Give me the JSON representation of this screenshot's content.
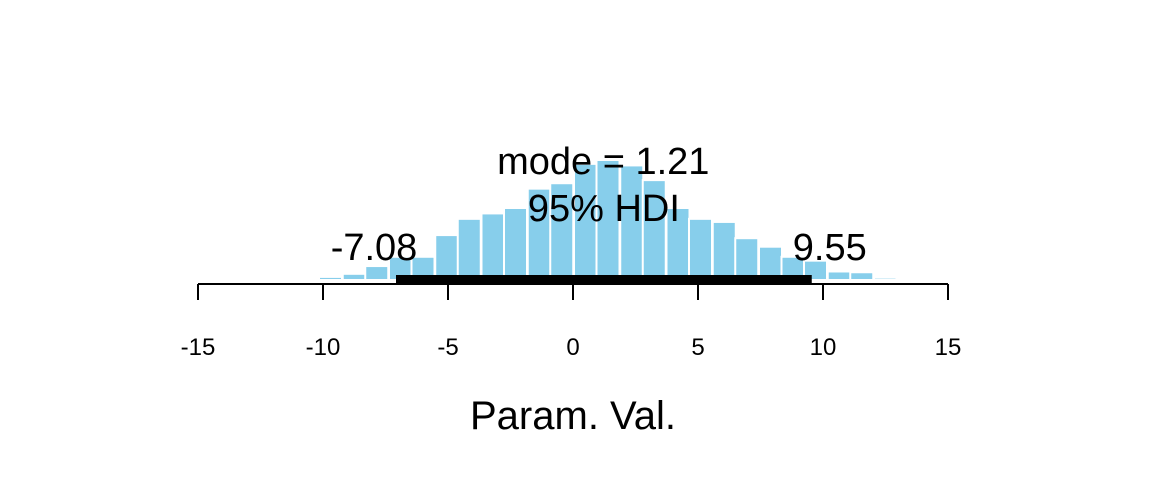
{
  "chart_data": {
    "type": "bar",
    "xlabel": "Param. Val.",
    "xlim": [
      -15,
      15
    ],
    "xticks": [
      -15,
      -10,
      -5,
      0,
      5,
      10,
      15
    ],
    "xtick_labels": [
      "-15",
      "-10",
      "-5",
      "0",
      "5",
      "10",
      "15"
    ],
    "bin_width": 0.92,
    "bins": [
      {
        "x": -11.5,
        "density": 0.001
      },
      {
        "x": -10.6,
        "density": 0.002
      },
      {
        "x": -9.7,
        "density": 0.004
      },
      {
        "x": -8.75,
        "density": 0.008
      },
      {
        "x": -7.85,
        "density": 0.018
      },
      {
        "x": -6.9,
        "density": 0.03
      },
      {
        "x": -6.0,
        "density": 0.03
      },
      {
        "x": -5.05,
        "density": 0.058
      },
      {
        "x": -4.15,
        "density": 0.079
      },
      {
        "x": -3.2,
        "density": 0.086
      },
      {
        "x": -2.3,
        "density": 0.093
      },
      {
        "x": -1.35,
        "density": 0.118
      },
      {
        "x": -0.45,
        "density": 0.125
      },
      {
        "x": 0.5,
        "density": 0.15
      },
      {
        "x": 1.4,
        "density": 0.155
      },
      {
        "x": 2.35,
        "density": 0.148
      },
      {
        "x": 3.25,
        "density": 0.129
      },
      {
        "x": 4.2,
        "density": 0.093
      },
      {
        "x": 5.1,
        "density": 0.079
      },
      {
        "x": 6.05,
        "density": 0.075
      },
      {
        "x": 6.95,
        "density": 0.054
      },
      {
        "x": 7.9,
        "density": 0.043
      },
      {
        "x": 8.8,
        "density": 0.03
      },
      {
        "x": 9.7,
        "density": 0.025
      },
      {
        "x": 10.65,
        "density": 0.011
      },
      {
        "x": 11.55,
        "density": 0.01
      },
      {
        "x": 12.5,
        "density": 0.003
      },
      {
        "x": 13.4,
        "density": 0.001
      },
      {
        "x": 14.3,
        "density": 0.001
      }
    ],
    "bar_color": "#87CEEB",
    "bar_edge_color": "#ffffff",
    "hdi_color": "#000000",
    "mode": 1.21,
    "mode_label": "mode = 1.21",
    "hdi": [
      -7.08,
      9.55
    ],
    "hdi_label": "95% HDI",
    "hdi_low_label": "-7.08",
    "hdi_high_label": "9.55",
    "grid": false,
    "legend": "none"
  }
}
